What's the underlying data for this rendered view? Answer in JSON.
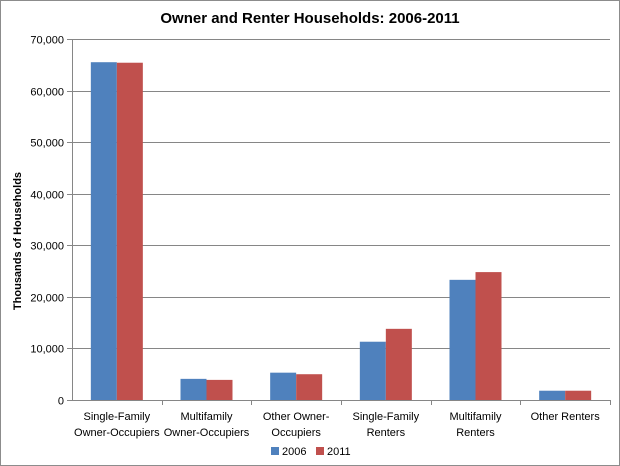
{
  "chart_data": {
    "type": "bar",
    "title": "Owner and Renter Households: 2006-2011",
    "ylabel": "Thousands of Households",
    "xlabel": "",
    "ylim": [
      0,
      70000
    ],
    "yticks": [
      0,
      10000,
      20000,
      30000,
      40000,
      50000,
      60000,
      70000
    ],
    "ytick_labels": [
      "0",
      "10,000",
      "20,000",
      "30,000",
      "40,000",
      "50,000",
      "60,000",
      "70,000"
    ],
    "grid": true,
    "legend_position": "bottom",
    "categories": [
      [
        "Single-Family",
        "Owner-Occupiers"
      ],
      [
        "Multifamily",
        "Owner-Occupiers"
      ],
      [
        "Other Owner-",
        "Occupiers"
      ],
      [
        "Single-Family",
        "Renters"
      ],
      [
        "Multifamily",
        "Renters"
      ],
      [
        "Other Renters"
      ]
    ],
    "series": [
      {
        "name": "2006",
        "color": "#4f81bd",
        "values": [
          65500,
          4100,
          5300,
          11300,
          23300,
          1800
        ]
      },
      {
        "name": "2011",
        "color": "#c0504d",
        "values": [
          65400,
          3900,
          5000,
          13800,
          24800,
          1800
        ]
      }
    ]
  }
}
